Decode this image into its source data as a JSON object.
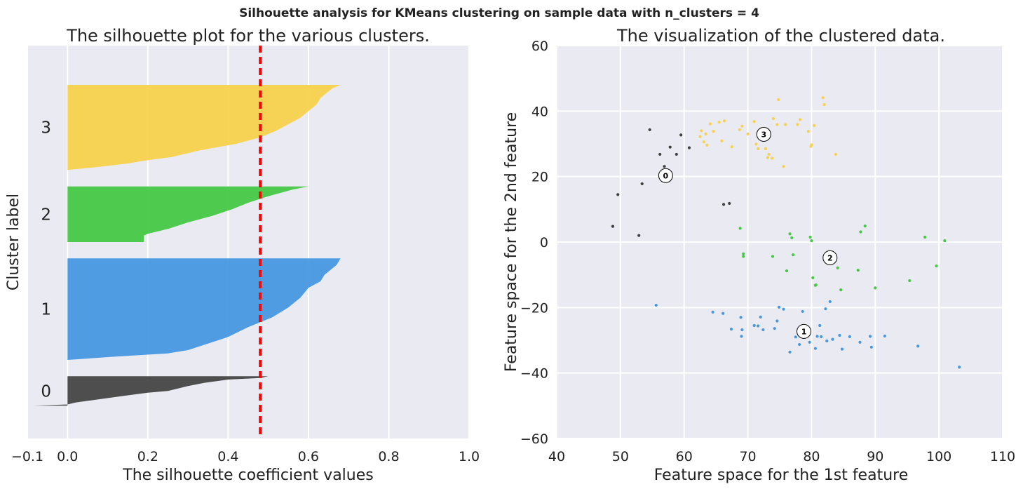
{
  "suptitle": "Silhouette analysis for KMeans clustering on sample data with n_clusters = 4",
  "chart_data": [
    {
      "type": "area",
      "title": "The silhouette plot for the various clusters.",
      "xlabel": "The silhouette coefficient values",
      "ylabel": "Cluster label",
      "xlim": [
        -0.1,
        1.0
      ],
      "xticks": [
        -0.1,
        0.0,
        0.2,
        0.4,
        0.6,
        0.8,
        1.0
      ],
      "xtick_labels": [
        "−0.1",
        "0.0",
        "0.2",
        "0.4",
        "0.6",
        "0.8",
        "1.0"
      ],
      "ylim": [
        0,
        120
      ],
      "grid": true,
      "average_silhouette": 0.48,
      "clusters": [
        {
          "label": "0",
          "color": "#464646",
          "y_lower": 10,
          "y_upper": 19,
          "profile": [
            [
              0,
              0.5
            ],
            [
              0.5,
              0.48
            ],
            [
              1,
              0.4
            ],
            [
              2,
              0.34
            ],
            [
              3,
              0.3
            ],
            [
              4.5,
              0.25
            ],
            [
              5,
              0.2
            ],
            [
              6,
              0.14
            ],
            [
              7,
              0.08
            ],
            [
              8,
              0.02
            ],
            [
              8.6,
              0.0
            ],
            [
              9,
              -0.085
            ]
          ]
        },
        {
          "label": "1",
          "color": "#4898e0",
          "y_lower": 24,
          "y_upper": 55,
          "profile": [
            [
              0,
              0.68
            ],
            [
              2,
              0.67
            ],
            [
              5,
              0.64
            ],
            [
              7,
              0.63
            ],
            [
              9,
              0.6
            ],
            [
              12,
              0.58
            ],
            [
              15,
              0.55
            ],
            [
              18,
              0.51
            ],
            [
              21,
              0.45
            ],
            [
              24,
              0.4
            ],
            [
              26,
              0.35
            ],
            [
              28,
              0.3
            ],
            [
              29,
              0.25
            ],
            [
              30,
              0.12
            ],
            [
              31,
              0.0
            ]
          ]
        },
        {
          "label": "2",
          "color": "#46c846",
          "y_lower": 60,
          "y_upper": 77,
          "profile": [
            [
              0,
              0.6
            ],
            [
              1,
              0.56
            ],
            [
              2,
              0.53
            ],
            [
              3,
              0.5
            ],
            [
              5,
              0.45
            ],
            [
              7,
              0.41
            ],
            [
              9,
              0.36
            ],
            [
              11,
              0.3
            ],
            [
              13,
              0.25
            ],
            [
              14.5,
              0.2
            ],
            [
              15,
              0.19
            ],
            [
              17,
              0.19
            ]
          ]
        },
        {
          "label": "3",
          "color": "#f8d24c",
          "y_lower": 82,
          "y_upper": 108,
          "profile": [
            [
              0,
              0.68
            ],
            [
              1,
              0.66
            ],
            [
              2,
              0.65
            ],
            [
              4,
              0.63
            ],
            [
              6,
              0.62
            ],
            [
              8,
              0.6
            ],
            [
              10,
              0.58
            ],
            [
              12,
              0.55
            ],
            [
              14,
              0.52
            ],
            [
              16,
              0.48
            ],
            [
              18,
              0.42
            ],
            [
              20,
              0.33
            ],
            [
              22,
              0.26
            ],
            [
              23,
              0.2
            ],
            [
              24,
              0.15
            ],
            [
              25,
              0.08
            ],
            [
              26,
              0.0
            ]
          ]
        }
      ]
    },
    {
      "type": "scatter",
      "title": "The visualization of the clustered data.",
      "xlabel": "Feature space for the 1st feature",
      "ylabel": "Feature space for the 2nd feature",
      "xlim": [
        40,
        110
      ],
      "ylim": [
        -60,
        60
      ],
      "xticks": [
        40,
        50,
        60,
        70,
        80,
        90,
        100,
        110
      ],
      "xtick_labels": [
        "40",
        "50",
        "60",
        "70",
        "80",
        "90",
        "100",
        "110"
      ],
      "yticks": [
        -60,
        -40,
        -20,
        0,
        20,
        40,
        60
      ],
      "ytick_labels": [
        "−60",
        "−40",
        "−20",
        "0",
        "20",
        "40",
        "60"
      ],
      "grid": true,
      "series": [
        {
          "cluster": "0",
          "color": "#404040",
          "points": [
            [
              54.6,
              34.3
            ],
            [
              59.5,
              32.7
            ],
            [
              56.2,
              26.8
            ],
            [
              57.8,
              29.0
            ],
            [
              58.8,
              26.8
            ],
            [
              60.8,
              28.8
            ],
            [
              56.9,
              23.1
            ],
            [
              53.4,
              17.8
            ],
            [
              49.6,
              14.5
            ],
            [
              66.2,
              11.5
            ],
            [
              67.1,
              11.8
            ],
            [
              48.8,
              4.8
            ],
            [
              52.9,
              2.0
            ]
          ]
        },
        {
          "cluster": "1",
          "color": "#4898e0",
          "points": [
            [
              55.6,
              -19.3
            ],
            [
              64.5,
              -21.4
            ],
            [
              66.1,
              -21.8
            ],
            [
              67.4,
              -26.6
            ],
            [
              68.9,
              -23.0
            ],
            [
              69.0,
              -28.8
            ],
            [
              69.1,
              -26.8
            ],
            [
              71.0,
              -25.5
            ],
            [
              71.6,
              -25.6
            ],
            [
              72.0,
              -22.9
            ],
            [
              72.4,
              -26.8
            ],
            [
              74.2,
              -26.4
            ],
            [
              74.6,
              -24.1
            ],
            [
              74.9,
              -19.9
            ],
            [
              75.6,
              -20.5
            ],
            [
              76.6,
              -33.6
            ],
            [
              77.5,
              -29.0
            ],
            [
              78.1,
              -31.3
            ],
            [
              78.6,
              -21.2
            ],
            [
              79.7,
              -30.6
            ],
            [
              80.6,
              -32.5
            ],
            [
              80.9,
              -28.8
            ],
            [
              81.3,
              -25.5
            ],
            [
              81.5,
              -28.9
            ],
            [
              82.2,
              -20.4
            ],
            [
              82.4,
              -30.2
            ],
            [
              82.9,
              -18.2
            ],
            [
              83.3,
              -29.7
            ],
            [
              84.4,
              -28.5
            ],
            [
              84.8,
              -32.7
            ],
            [
              86.0,
              -28.9
            ],
            [
              87.6,
              -30.6
            ],
            [
              89.2,
              -28.8
            ],
            [
              89.4,
              -32.1
            ],
            [
              91.5,
              -28.7
            ],
            [
              96.7,
              -31.8
            ],
            [
              103.2,
              -38.2
            ]
          ]
        },
        {
          "cluster": "2",
          "color": "#46c846",
          "points": [
            [
              68.8,
              4.2
            ],
            [
              69.3,
              -3.6
            ],
            [
              69.3,
              -4.4
            ],
            [
              73.9,
              -4.4
            ],
            [
              76.1,
              -8.8
            ],
            [
              76.6,
              2.5
            ],
            [
              76.9,
              1.3
            ],
            [
              77.1,
              -3.9
            ],
            [
              79.8,
              1.5
            ],
            [
              80.0,
              0.4
            ],
            [
              80.2,
              -10.9
            ],
            [
              80.6,
              -13.2
            ],
            [
              80.7,
              -13.1
            ],
            [
              83.3,
              -4.9
            ],
            [
              84.1,
              -7.9
            ],
            [
              84.6,
              -14.6
            ],
            [
              87.3,
              -8.6
            ],
            [
              87.7,
              3.1
            ],
            [
              88.4,
              4.9
            ],
            [
              90.0,
              -14.0
            ],
            [
              95.4,
              -11.8
            ],
            [
              97.8,
              1.5
            ],
            [
              99.6,
              -7.3
            ],
            [
              100.9,
              0.4
            ]
          ]
        },
        {
          "cluster": "3",
          "color": "#f8d24c",
          "points": [
            [
              62.5,
              32.2
            ],
            [
              62.7,
              34.0
            ],
            [
              63.1,
              30.6
            ],
            [
              63.4,
              33.0
            ],
            [
              63.6,
              29.6
            ],
            [
              64.1,
              36.1
            ],
            [
              64.6,
              33.8
            ],
            [
              65.5,
              36.6
            ],
            [
              65.9,
              30.9
            ],
            [
              66.3,
              37.0
            ],
            [
              67.5,
              29.1
            ],
            [
              68.7,
              34.3
            ],
            [
              69.1,
              35.4
            ],
            [
              70.0,
              33.0
            ],
            [
              71.0,
              36.8
            ],
            [
              71.3,
              29.9
            ],
            [
              71.6,
              28.5
            ],
            [
              72.2,
              34.7
            ],
            [
              72.8,
              28.5
            ],
            [
              73.1,
              25.8
            ],
            [
              73.3,
              26.8
            ],
            [
              73.8,
              25.6
            ],
            [
              74.0,
              37.7
            ],
            [
              74.6,
              35.9
            ],
            [
              74.8,
              43.5
            ],
            [
              75.6,
              23.1
            ],
            [
              75.9,
              35.9
            ],
            [
              77.8,
              35.9
            ],
            [
              78.2,
              37.4
            ],
            [
              79.5,
              33.8
            ],
            [
              79.9,
              29.2
            ],
            [
              80.0,
              29.7
            ],
            [
              80.4,
              35.6
            ],
            [
              81.8,
              44.1
            ],
            [
              82.0,
              42.0
            ],
            [
              83.8,
              26.8
            ]
          ]
        }
      ],
      "centers": [
        {
          "label": "0",
          "x": 57.1,
          "y": 20.3
        },
        {
          "label": "1",
          "x": 78.8,
          "y": -27.3
        },
        {
          "label": "2",
          "x": 82.9,
          "y": -4.8
        },
        {
          "label": "3",
          "x": 72.5,
          "y": 32.9
        }
      ]
    }
  ]
}
